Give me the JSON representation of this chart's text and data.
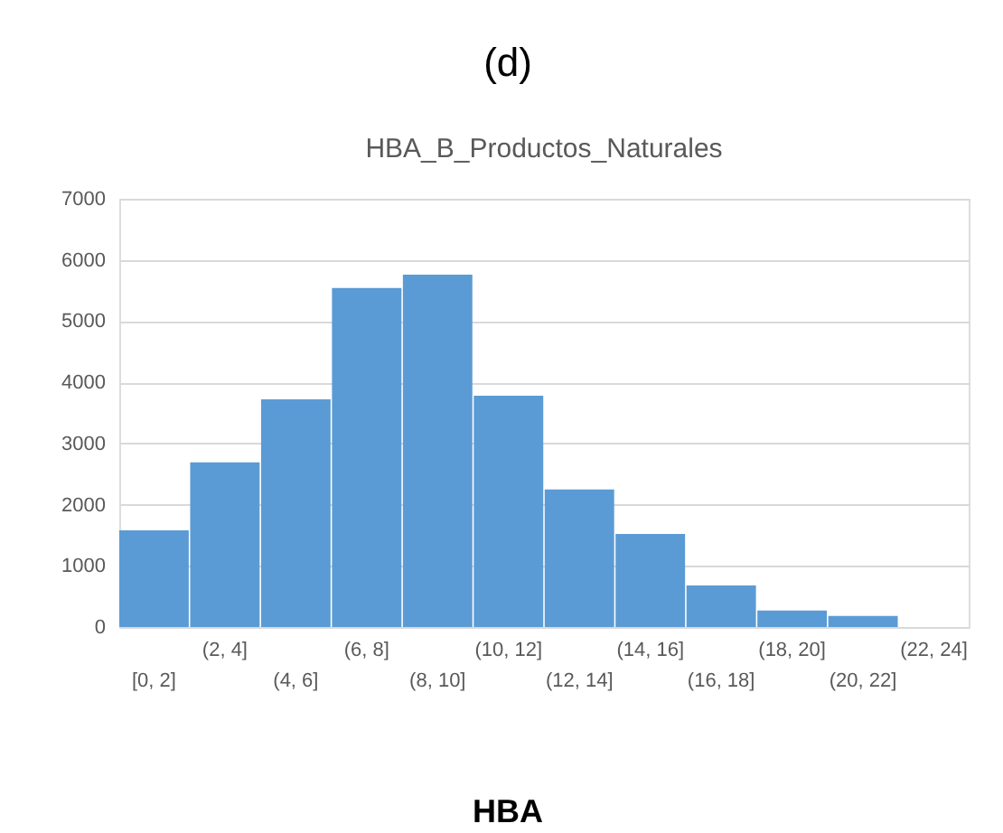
{
  "chart_data": {
    "type": "bar",
    "title": "HBA_B_Productos_Naturales",
    "xlabel": "HBA",
    "annotations": [
      "(d)"
    ],
    "categories": [
      "[0, 2]",
      "(2, 4]",
      "(4, 6]",
      "(6, 8]",
      "(8, 10]",
      "(10, 12]",
      "(12, 14]",
      "(14, 16]",
      "(16, 18]",
      "(18, 20]",
      "(20, 22]",
      "(22, 24]"
    ],
    "values": [
      1580,
      2690,
      3720,
      5540,
      5760,
      3780,
      2250,
      1520,
      680,
      270,
      180,
      0
    ],
    "color": "#5b9bd5",
    "ylim": [
      0,
      7000
    ],
    "yticks": [
      0,
      1000,
      2000,
      3000,
      4000,
      5000,
      6000,
      7000
    ],
    "grid": "y"
  }
}
